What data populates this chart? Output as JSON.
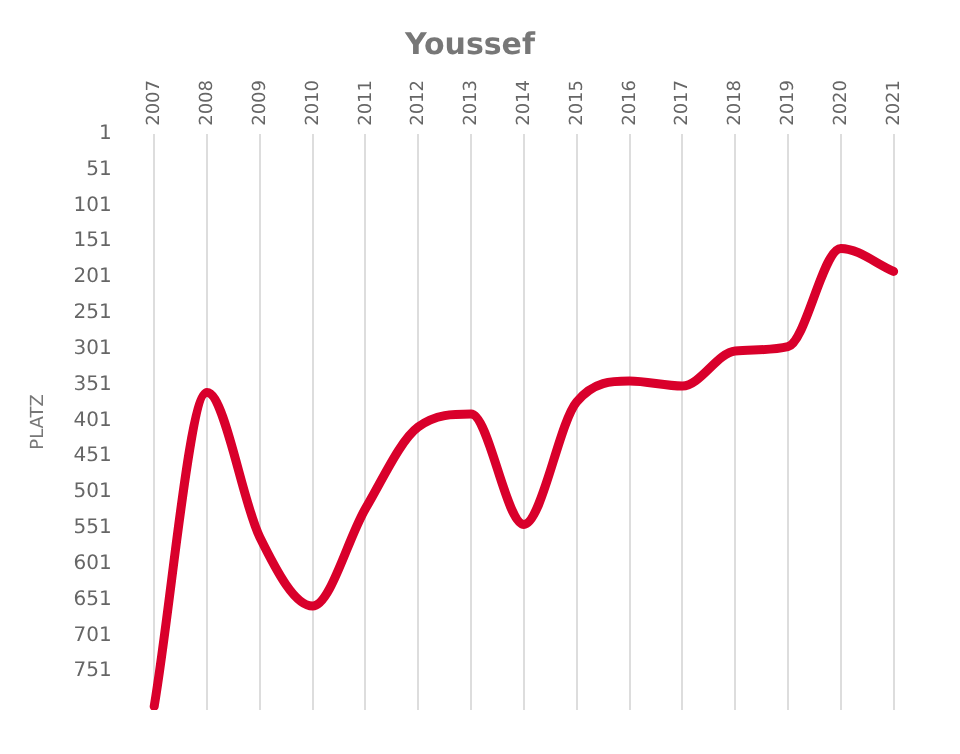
{
  "chart_data": {
    "type": "line",
    "title": "Youssef",
    "ylabel": "PLATZ",
    "categories": [
      "2007",
      "2008",
      "2009",
      "2010",
      "2011",
      "2012",
      "2013",
      "2014",
      "2015",
      "2016",
      "2017",
      "2018",
      "2019",
      "2020",
      "2021"
    ],
    "series": [
      {
        "color": "#d9002b",
        "values": [
          800,
          362,
          564,
          660,
          524,
          410,
          392,
          546,
          375,
          346,
          353,
          304,
          298,
          161,
          193
        ]
      }
    ],
    "ylim": [
      805,
      1
    ],
    "yticks": [
      1,
      51,
      101,
      151,
      201,
      251,
      301,
      351,
      401,
      451,
      501,
      551,
      601,
      651,
      701,
      751
    ],
    "grid": "x",
    "legend": false,
    "marker": "none",
    "line_style": "solid"
  }
}
